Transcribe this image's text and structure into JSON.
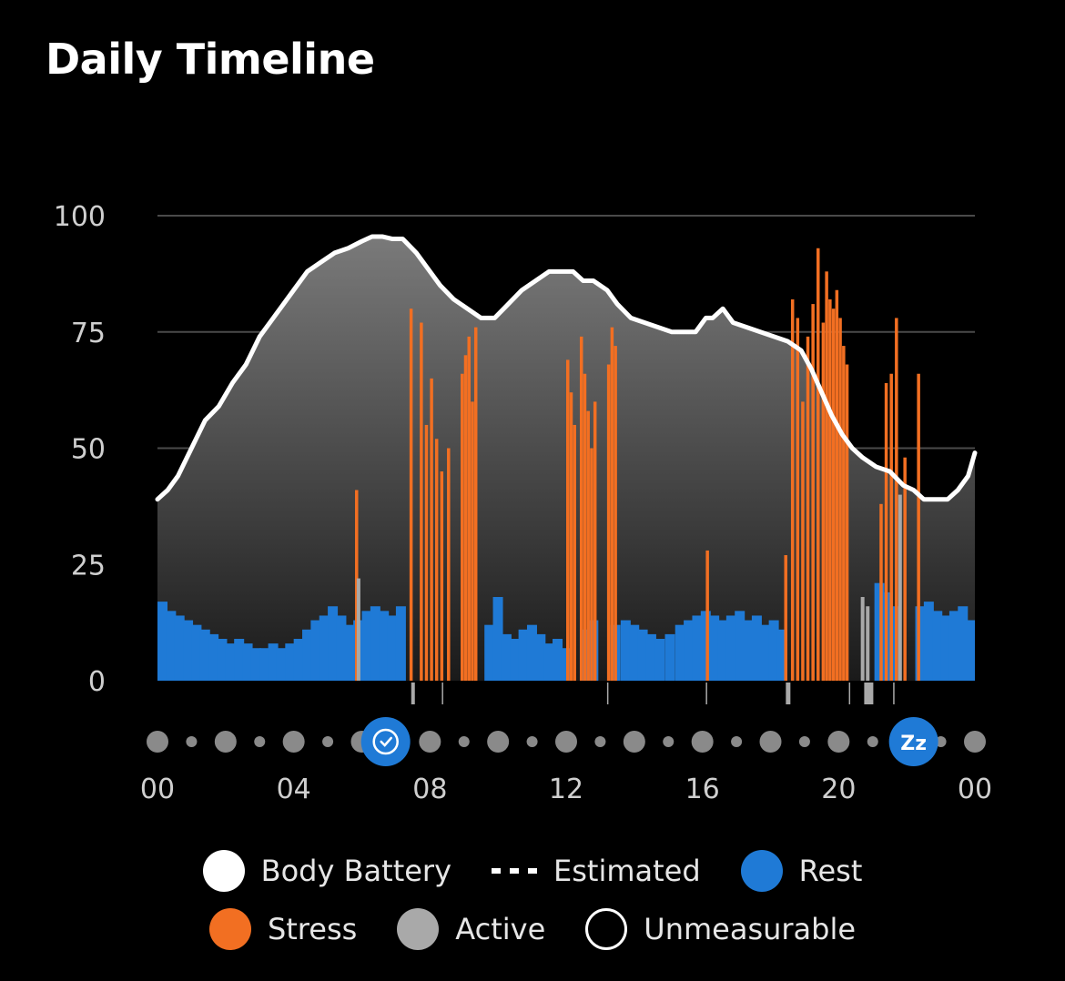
{
  "header": {
    "title": "Daily Timeline"
  },
  "chart_data": {
    "type": "area",
    "title": "Daily Timeline",
    "xlabel": "",
    "ylabel": "",
    "ylim": [
      0,
      100
    ],
    "xlim": [
      0,
      24
    ],
    "y_ticks": [
      "100",
      "75",
      "50",
      "25",
      "0"
    ],
    "y_tick_values": [
      100,
      75,
      50,
      25,
      0
    ],
    "x_ticks": [
      "00",
      "04",
      "08",
      "12",
      "16",
      "20",
      "00"
    ],
    "x_tick_values": [
      0,
      4,
      8,
      12,
      16,
      20,
      24
    ],
    "grid": true,
    "colors": {
      "body_battery": "#ffffff",
      "rest": "#1f7ad6",
      "stress": "#f26f22",
      "active": "#a9a9a9",
      "area_top": "#7a7a7a",
      "area_bottom": "#1a1a1a",
      "grid": "#4a4a4a"
    },
    "series": [
      {
        "name": "Body Battery",
        "type": "line",
        "x": [
          0,
          0.3,
          0.6,
          1,
          1.4,
          1.8,
          2.2,
          2.6,
          3,
          3.4,
          3.7,
          4,
          4.4,
          4.8,
          5.2,
          5.6,
          6,
          6.3,
          6.6,
          6.9,
          7.2,
          7.6,
          7.9,
          8.3,
          8.7,
          9.1,
          9.5,
          9.9,
          10.3,
          10.7,
          11.1,
          11.5,
          11.9,
          12.2,
          12.5,
          12.8,
          13.2,
          13.5,
          13.9,
          14.3,
          14.7,
          15.1,
          15.5,
          15.8,
          16.1,
          16.3,
          16.6,
          16.9,
          17.3,
          17.7,
          18.1,
          18.5,
          18.9,
          19.2,
          19.5,
          19.8,
          20.1,
          20.4,
          20.7,
          21.1,
          21.5,
          21.9,
          22.2,
          22.5,
          22.9,
          23.2,
          23.5,
          23.8,
          24
        ],
        "values": [
          39,
          41,
          44,
          50,
          56,
          59,
          64,
          68,
          74,
          78,
          81,
          84,
          88,
          90,
          92,
          93,
          94.5,
          95.5,
          95.5,
          95,
          95,
          92,
          89,
          85,
          82,
          80,
          78,
          78,
          81,
          84,
          86,
          88,
          88,
          88,
          86,
          86,
          84,
          81,
          78,
          77,
          76,
          75,
          75,
          75,
          78,
          78,
          80,
          77,
          76,
          75,
          74,
          73,
          71,
          67,
          62,
          57,
          53,
          50,
          48,
          46,
          45,
          42,
          41,
          39,
          39,
          39,
          41,
          44,
          49
        ]
      },
      {
        "name": "Rest",
        "type": "bar",
        "x": [
          0,
          0.25,
          0.5,
          0.75,
          1,
          1.25,
          1.5,
          1.75,
          2,
          2.25,
          2.5,
          2.75,
          3,
          3.25,
          3.5,
          3.75,
          4,
          4.25,
          4.5,
          4.75,
          5,
          5.25,
          5.5,
          5.75,
          6,
          6.25,
          6.5,
          6.75,
          7,
          9.6,
          9.85,
          10.1,
          10.35,
          10.6,
          10.85,
          11.1,
          11.35,
          11.6,
          11.85,
          12.4,
          12.65,
          13.3,
          13.6,
          13.85,
          14.1,
          14.35,
          14.6,
          14.9,
          15.2,
          15.45,
          15.7,
          15.95,
          16.2,
          16.45,
          16.7,
          16.95,
          17.2,
          17.45,
          17.7,
          17.95,
          18.2,
          21.05,
          21.3,
          21.55,
          22.25,
          22.5,
          22.75,
          23,
          23.25,
          23.5,
          23.75,
          24
        ],
        "values": [
          17,
          15,
          14,
          13,
          12,
          11,
          10,
          9,
          8,
          9,
          8,
          7,
          7,
          8,
          7,
          8,
          9,
          11,
          13,
          14,
          16,
          14,
          12,
          13,
          15,
          16,
          15,
          14,
          16,
          12,
          18,
          10,
          9,
          11,
          12,
          10,
          8,
          9,
          7,
          11,
          13,
          12,
          13,
          12,
          11,
          10,
          9,
          10,
          12,
          13,
          14,
          15,
          14,
          13,
          14,
          15,
          13,
          14,
          12,
          13,
          11,
          21,
          19,
          16,
          16,
          17,
          15,
          14,
          15,
          16,
          13,
          13
        ]
      },
      {
        "name": "Stress",
        "type": "bar",
        "x": [
          5.8,
          7.4,
          7.7,
          7.85,
          8,
          8.15,
          8.3,
          8.5,
          8.9,
          9.0,
          9.1,
          9.2,
          9.3,
          12.0,
          12.1,
          12.2,
          12.4,
          12.5,
          12.6,
          12.7,
          12.8,
          13.2,
          13.3,
          13.4,
          16.1,
          18.4,
          18.6,
          18.75,
          18.9,
          19.05,
          19.2,
          19.35,
          19.5,
          19.6,
          19.7,
          19.8,
          19.9,
          20.0,
          20.1,
          20.2,
          21.2,
          21.35,
          21.5,
          21.65,
          21.9,
          22.3
        ],
        "values": [
          41,
          80,
          77,
          55,
          65,
          52,
          45,
          50,
          66,
          70,
          74,
          60,
          76,
          69,
          62,
          55,
          74,
          66,
          58,
          50,
          60,
          68,
          76,
          72,
          28,
          27,
          82,
          78,
          60,
          74,
          81,
          93,
          77,
          88,
          82,
          80,
          84,
          78,
          72,
          68,
          38,
          64,
          66,
          78,
          48,
          66
        ]
      },
      {
        "name": "Active",
        "type": "bar",
        "x": [
          5.85,
          20.65,
          20.8,
          21.75
        ],
        "values": [
          22,
          18,
          16,
          40
        ]
      }
    ],
    "timeline_markers": [
      {
        "x": 6.7,
        "icon": "clock-icon"
      },
      {
        "x": 22.2,
        "label": "Zz",
        "icon": "sleep-icon"
      }
    ]
  },
  "legend": {
    "row1": [
      {
        "label": "Body Battery",
        "swatch": "filled",
        "color": "#ffffff"
      },
      {
        "label": "Estimated",
        "swatch": "dashes",
        "color": "#ffffff"
      },
      {
        "label": "Rest",
        "swatch": "filled",
        "color": "#1f7ad6"
      }
    ],
    "row2": [
      {
        "label": "Stress",
        "swatch": "filled",
        "color": "#f26f22"
      },
      {
        "label": "Active",
        "swatch": "filled",
        "color": "#a9a9a9"
      },
      {
        "label": "Unmeasurable",
        "swatch": "outline",
        "color": "#ffffff"
      }
    ]
  }
}
